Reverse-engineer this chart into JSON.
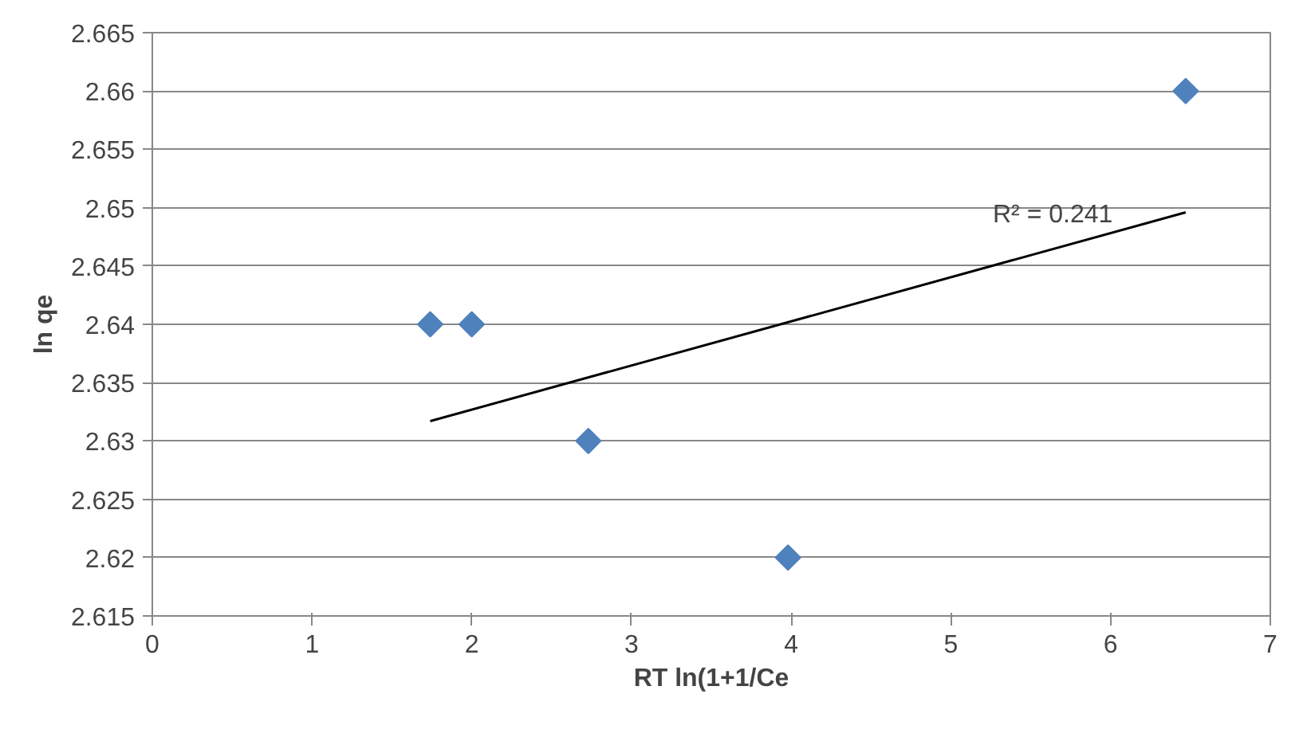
{
  "chart_data": {
    "type": "scatter",
    "xlabel": "RT ln(1+1/Ce",
    "ylabel": "ln qe",
    "x": [
      1.74,
      2.0,
      2.73,
      3.98,
      6.47
    ],
    "series": [
      {
        "color": "#4f81bd",
        "values": [
          2.64,
          2.64,
          2.63,
          2.62,
          2.66
        ],
        "marker": "diamond"
      },
      {
        "type": "line",
        "color": "#000000",
        "x": [
          1.74,
          6.47
        ],
        "values": [
          2.6317,
          2.6496
        ],
        "marker": "none"
      }
    ],
    "annotations": [
      "R² = 0.241"
    ],
    "xlim": [
      0,
      7
    ],
    "xticks": [
      0,
      1,
      2,
      3,
      4,
      5,
      6,
      7
    ],
    "ylim": [
      2.615,
      2.665
    ],
    "yticks": [
      2.615,
      2.62,
      2.625,
      2.63,
      2.635,
      2.64,
      2.645,
      2.65,
      2.655,
      2.66,
      2.665
    ],
    "grid": "y"
  }
}
